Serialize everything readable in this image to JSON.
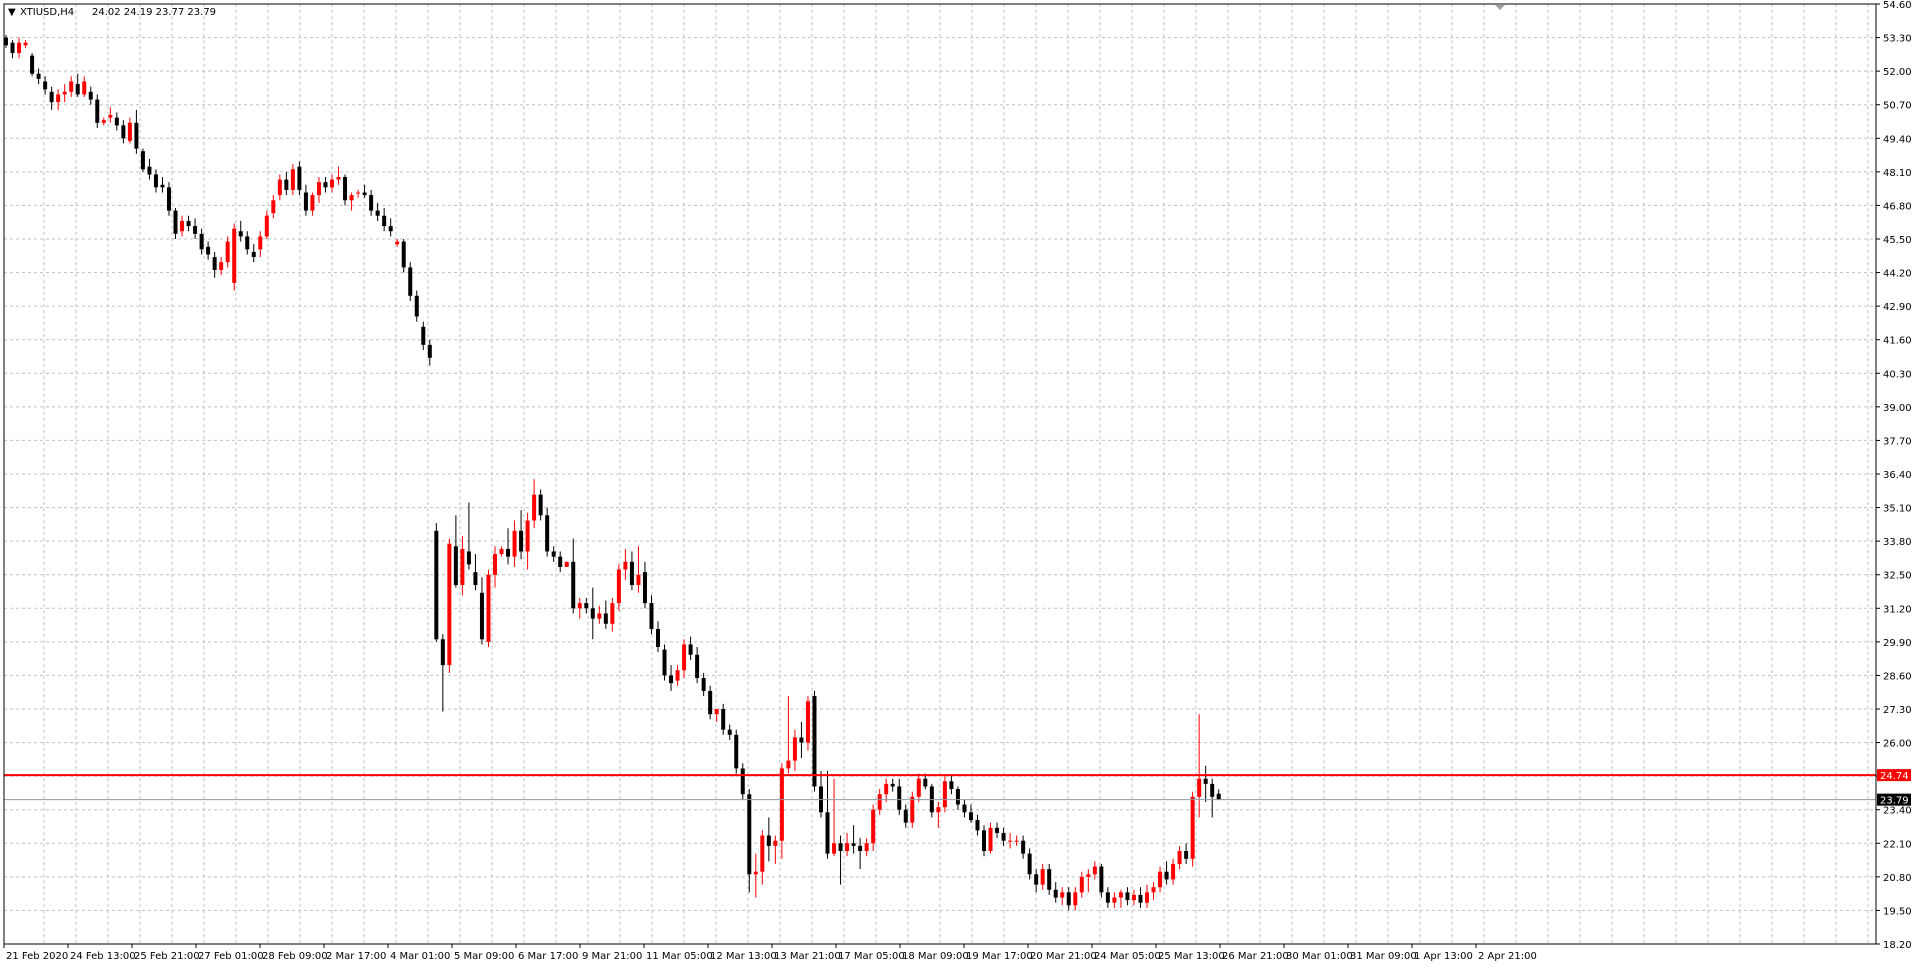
{
  "header": {
    "menu_glyph": "▼",
    "title": "XTIUSD,H4",
    "ohlc": "24.02 24.19 23.77 23.79"
  },
  "chart_data": {
    "type": "candlestick",
    "symbol": "XTIUSD",
    "timeframe": "H4",
    "ylim": [
      18.2,
      54.6
    ],
    "y_ticks": [
      "54.60",
      "53.30",
      "52.00",
      "50.70",
      "49.40",
      "48.10",
      "46.80",
      "45.50",
      "44.20",
      "42.90",
      "41.60",
      "40.30",
      "39.00",
      "37.70",
      "36.40",
      "35.10",
      "33.80",
      "32.50",
      "31.20",
      "29.90",
      "28.60",
      "27.30",
      "26.00",
      "24.70",
      "23.40",
      "22.10",
      "20.80",
      "19.50",
      "18.20"
    ],
    "x_ticks": [
      "21 Feb 2020",
      "24 Feb 13:00",
      "25 Feb 21:00",
      "27 Feb 01:00",
      "28 Feb 09:00",
      "2 Mar 17:00",
      "4 Mar 01:00",
      "5 Mar 09:00",
      "6 Mar 17:00",
      "9 Mar 21:00",
      "11 Mar 05:00",
      "12 Mar 13:00",
      "13 Mar 21:00",
      "17 Mar 05:00",
      "18 Mar 09:00",
      "19 Mar 17:00",
      "20 Mar 21:00",
      "24 Mar 05:00",
      "25 Mar 13:00",
      "26 Mar 21:00",
      "30 Mar 01:00",
      "31 Mar 09:00",
      "1 Apr 13:00",
      "2 Apr 21:00"
    ],
    "grid": true,
    "bull_color": "#ff0000",
    "bear_color": "#000000",
    "grid_color": "#c0c0c0",
    "level_line": {
      "price": 24.74,
      "label": "24.74",
      "color": "#ff0000"
    },
    "bid_line": {
      "price": 23.79,
      "label": "23.79",
      "color": "#000000"
    },
    "candles": [
      [
        53.3,
        53.4,
        52.9,
        53.0
      ],
      [
        53.1,
        53.2,
        52.5,
        52.7
      ],
      [
        52.7,
        53.3,
        52.5,
        53.1
      ],
      [
        53.0,
        53.2,
        52.9,
        53.1
      ],
      [
        52.6,
        52.7,
        51.8,
        51.9
      ],
      [
        51.9,
        52.1,
        51.5,
        51.7
      ],
      [
        51.6,
        51.8,
        51.1,
        51.3
      ],
      [
        51.2,
        51.4,
        50.5,
        50.8
      ],
      [
        50.8,
        51.3,
        50.5,
        51.1
      ],
      [
        51.1,
        51.5,
        50.8,
        51.2
      ],
      [
        51.2,
        51.8,
        51.0,
        51.6
      ],
      [
        51.5,
        51.9,
        51.0,
        51.1
      ],
      [
        51.1,
        51.8,
        51.0,
        51.6
      ],
      [
        51.2,
        51.4,
        50.7,
        50.9
      ],
      [
        50.9,
        51.1,
        49.8,
        50.0
      ],
      [
        50.0,
        50.2,
        49.9,
        50.1
      ],
      [
        50.2,
        50.6,
        50.0,
        50.3
      ],
      [
        50.2,
        50.4,
        49.7,
        49.9
      ],
      [
        49.9,
        50.1,
        49.2,
        49.4
      ],
      [
        49.3,
        50.2,
        49.2,
        50.0
      ],
      [
        50.0,
        50.5,
        48.8,
        49.0
      ],
      [
        48.9,
        49.0,
        48.1,
        48.2
      ],
      [
        48.3,
        48.6,
        47.8,
        48.0
      ],
      [
        48.0,
        48.2,
        47.3,
        47.5
      ],
      [
        47.6,
        47.9,
        47.3,
        47.5
      ],
      [
        47.5,
        47.7,
        46.4,
        46.6
      ],
      [
        46.6,
        46.7,
        45.5,
        45.7
      ],
      [
        45.8,
        46.4,
        45.6,
        46.2
      ],
      [
        46.2,
        46.4,
        45.8,
        46.0
      ],
      [
        46.0,
        46.3,
        45.5,
        45.7
      ],
      [
        45.7,
        45.9,
        44.9,
        45.1
      ],
      [
        45.2,
        45.4,
        44.7,
        44.9
      ],
      [
        44.8,
        45.0,
        44.0,
        44.3
      ],
      [
        44.3,
        44.8,
        44.1,
        44.6
      ],
      [
        44.6,
        45.6,
        44.4,
        45.4
      ],
      [
        43.8,
        46.1,
        43.5,
        45.9
      ],
      [
        45.8,
        46.2,
        45.4,
        45.6
      ],
      [
        45.6,
        45.8,
        44.9,
        45.1
      ],
      [
        45.0,
        45.3,
        44.6,
        44.8
      ],
      [
        45.1,
        45.8,
        44.8,
        45.6
      ],
      [
        45.6,
        46.6,
        45.5,
        46.4
      ],
      [
        46.5,
        47.2,
        46.3,
        47.0
      ],
      [
        47.2,
        48.0,
        47.0,
        47.8
      ],
      [
        47.8,
        48.1,
        47.2,
        47.4
      ],
      [
        47.4,
        48.4,
        47.2,
        48.2
      ],
      [
        48.3,
        48.5,
        47.2,
        47.4
      ],
      [
        47.3,
        47.6,
        46.4,
        46.6
      ],
      [
        46.6,
        47.3,
        46.4,
        47.2
      ],
      [
        47.2,
        47.9,
        46.9,
        47.7
      ],
      [
        47.7,
        47.9,
        47.3,
        47.5
      ],
      [
        47.5,
        48.0,
        47.3,
        47.8
      ],
      [
        47.8,
        48.3,
        47.6,
        47.9
      ],
      [
        47.9,
        48.0,
        46.8,
        47.0
      ],
      [
        47.0,
        47.3,
        46.6,
        47.2
      ],
      [
        47.3,
        47.4,
        47.1,
        47.3
      ],
      [
        47.3,
        47.6,
        47.1,
        47.2
      ],
      [
        47.2,
        47.4,
        46.4,
        46.6
      ],
      [
        46.6,
        46.9,
        46.2,
        46.4
      ],
      [
        46.4,
        46.7,
        45.8,
        46.0
      ],
      [
        46.0,
        46.3,
        45.6,
        45.8
      ],
      [
        45.3,
        45.5,
        45.2,
        45.4
      ],
      [
        45.4,
        45.5,
        44.2,
        44.4
      ],
      [
        44.4,
        44.6,
        43.1,
        43.3
      ],
      [
        43.3,
        43.5,
        42.3,
        42.5
      ],
      [
        42.1,
        42.3,
        41.2,
        41.4
      ],
      [
        41.4,
        41.6,
        40.6,
        40.9
      ],
      [
        34.2,
        34.5,
        29.9,
        30.0
      ],
      [
        30.0,
        30.2,
        27.2,
        29.0
      ],
      [
        29.0,
        33.9,
        28.7,
        33.7
      ],
      [
        33.6,
        34.8,
        32.0,
        32.1
      ],
      [
        32.1,
        34.0,
        31.7,
        33.5
      ],
      [
        33.4,
        35.3,
        32.7,
        32.9
      ],
      [
        32.6,
        33.3,
        31.9,
        32.1
      ],
      [
        31.8,
        32.4,
        29.8,
        30.0
      ],
      [
        29.9,
        32.7,
        29.7,
        32.5
      ],
      [
        32.5,
        33.6,
        32.0,
        33.3
      ],
      [
        33.3,
        33.6,
        33.2,
        33.5
      ],
      [
        33.5,
        34.3,
        32.9,
        33.2
      ],
      [
        33.2,
        34.6,
        32.8,
        34.2
      ],
      [
        34.2,
        35.0,
        33.1,
        33.4
      ],
      [
        33.4,
        34.9,
        32.7,
        34.6
      ],
      [
        34.6,
        36.2,
        34.3,
        35.6
      ],
      [
        35.6,
        35.8,
        34.6,
        34.8
      ],
      [
        34.8,
        35.1,
        33.2,
        33.4
      ],
      [
        33.4,
        33.6,
        33.0,
        33.2
      ],
      [
        33.2,
        33.4,
        32.6,
        32.8
      ],
      [
        32.8,
        33.0,
        32.9,
        33.0
      ],
      [
        33.0,
        33.9,
        31.0,
        31.2
      ],
      [
        31.2,
        31.6,
        30.8,
        31.4
      ],
      [
        31.4,
        31.6,
        31.0,
        31.2
      ],
      [
        31.2,
        32.0,
        30.0,
        30.8
      ],
      [
        30.8,
        31.3,
        30.6,
        31.0
      ],
      [
        31.0,
        31.5,
        30.4,
        30.6
      ],
      [
        30.6,
        31.6,
        30.3,
        31.4
      ],
      [
        31.4,
        32.9,
        31.1,
        32.7
      ],
      [
        32.7,
        33.5,
        32.3,
        33.0
      ],
      [
        33.0,
        33.4,
        31.9,
        32.1
      ],
      [
        32.1,
        33.6,
        31.8,
        32.5
      ],
      [
        32.6,
        33.0,
        31.2,
        31.4
      ],
      [
        31.4,
        31.7,
        30.2,
        30.4
      ],
      [
        30.4,
        30.7,
        29.5,
        29.7
      ],
      [
        29.6,
        29.8,
        28.4,
        28.6
      ],
      [
        28.6,
        29.0,
        28.0,
        28.3
      ],
      [
        28.4,
        29.0,
        28.2,
        28.8
      ],
      [
        28.8,
        30.0,
        28.5,
        29.8
      ],
      [
        29.8,
        30.1,
        29.2,
        29.4
      ],
      [
        29.4,
        29.7,
        28.3,
        28.5
      ],
      [
        28.5,
        28.7,
        27.8,
        28.0
      ],
      [
        28.0,
        28.2,
        26.9,
        27.1
      ],
      [
        27.1,
        27.3,
        26.8,
        27.3
      ],
      [
        27.3,
        27.5,
        26.3,
        26.5
      ],
      [
        26.5,
        26.7,
        26.1,
        26.3
      ],
      [
        26.3,
        26.5,
        24.8,
        25.0
      ],
      [
        25.0,
        25.2,
        23.8,
        24.0
      ],
      [
        24.0,
        24.2,
        20.2,
        20.9
      ],
      [
        20.9,
        21.7,
        20.0,
        21.0
      ],
      [
        21.0,
        22.6,
        20.5,
        22.4
      ],
      [
        22.4,
        23.1,
        21.4,
        22.0
      ],
      [
        22.0,
        22.4,
        21.3,
        22.2
      ],
      [
        22.2,
        25.2,
        21.5,
        25.0
      ],
      [
        25.0,
        27.8,
        24.8,
        25.3
      ],
      [
        25.3,
        26.5,
        24.9,
        26.2
      ],
      [
        26.2,
        26.8,
        25.4,
        26.0
      ],
      [
        26.0,
        27.8,
        25.7,
        27.6
      ],
      [
        27.8,
        28.0,
        24.1,
        24.3
      ],
      [
        24.3,
        24.9,
        23.1,
        23.3
      ],
      [
        23.3,
        24.9,
        21.5,
        21.7
      ],
      [
        21.7,
        24.6,
        21.6,
        22.1
      ],
      [
        22.1,
        22.4,
        20.5,
        21.8
      ],
      [
        21.8,
        22.5,
        21.6,
        22.1
      ],
      [
        22.1,
        22.8,
        21.7,
        22.0
      ],
      [
        22.0,
        22.3,
        21.1,
        21.8
      ],
      [
        21.8,
        22.3,
        21.6,
        22.1
      ],
      [
        22.1,
        23.6,
        21.8,
        23.4
      ],
      [
        23.4,
        24.2,
        23.2,
        24.0
      ],
      [
        24.0,
        24.6,
        23.7,
        24.4
      ],
      [
        24.4,
        24.6,
        24.1,
        24.3
      ],
      [
        24.3,
        24.6,
        23.2,
        23.4
      ],
      [
        23.4,
        23.6,
        22.7,
        22.9
      ],
      [
        22.9,
        24.1,
        22.7,
        23.9
      ],
      [
        23.9,
        24.8,
        23.7,
        24.6
      ],
      [
        24.6,
        24.8,
        24.2,
        24.3
      ],
      [
        24.3,
        24.4,
        23.1,
        23.3
      ],
      [
        23.3,
        23.7,
        22.7,
        23.5
      ],
      [
        23.5,
        24.7,
        23.3,
        24.5
      ],
      [
        24.5,
        24.7,
        24.0,
        24.2
      ],
      [
        24.2,
        24.3,
        23.4,
        23.6
      ],
      [
        23.6,
        23.8,
        23.1,
        23.3
      ],
      [
        23.3,
        23.6,
        22.9,
        23.0
      ],
      [
        23.0,
        23.2,
        22.4,
        22.6
      ],
      [
        22.6,
        22.8,
        21.6,
        21.8
      ],
      [
        21.8,
        22.9,
        21.7,
        22.7
      ],
      [
        22.7,
        22.9,
        22.3,
        22.5
      ],
      [
        22.5,
        22.7,
        22.0,
        22.2
      ],
      [
        22.2,
        22.5,
        21.9,
        22.2
      ],
      [
        22.2,
        22.4,
        22.0,
        22.2
      ],
      [
        22.2,
        22.4,
        21.5,
        21.7
      ],
      [
        21.7,
        21.9,
        20.7,
        20.9
      ],
      [
        20.9,
        21.1,
        20.2,
        20.5
      ],
      [
        20.5,
        21.3,
        20.3,
        21.1
      ],
      [
        21.1,
        21.3,
        20.1,
        20.3
      ],
      [
        20.3,
        20.6,
        19.8,
        20.0
      ],
      [
        20.0,
        20.4,
        19.7,
        20.2
      ],
      [
        20.2,
        20.4,
        19.5,
        19.7
      ],
      [
        19.7,
        20.4,
        19.5,
        20.2
      ],
      [
        20.2,
        21.0,
        20.0,
        20.8
      ],
      [
        20.8,
        21.1,
        20.2,
        20.9
      ],
      [
        20.9,
        21.4,
        20.7,
        21.2
      ],
      [
        21.2,
        21.3,
        20.0,
        20.2
      ],
      [
        20.2,
        20.4,
        19.6,
        19.8
      ],
      [
        19.8,
        20.2,
        19.6,
        20.0
      ],
      [
        20.0,
        20.3,
        19.6,
        20.2
      ],
      [
        20.2,
        20.4,
        19.7,
        19.9
      ],
      [
        19.9,
        20.3,
        19.7,
        20.1
      ],
      [
        20.1,
        20.4,
        19.6,
        19.8
      ],
      [
        19.8,
        20.5,
        19.6,
        20.2
      ],
      [
        20.2,
        20.6,
        19.9,
        20.4
      ],
      [
        20.4,
        21.2,
        20.2,
        21.0
      ],
      [
        21.0,
        21.4,
        20.5,
        20.7
      ],
      [
        20.7,
        21.5,
        20.5,
        21.3
      ],
      [
        21.3,
        22.0,
        21.1,
        21.8
      ],
      [
        21.8,
        22.1,
        21.3,
        21.5
      ],
      [
        21.5,
        24.1,
        21.2,
        23.9
      ],
      [
        23.9,
        27.1,
        23.1,
        24.6
      ],
      [
        24.6,
        25.1,
        23.7,
        24.4
      ],
      [
        24.4,
        24.6,
        23.1,
        23.9
      ],
      [
        24.02,
        24.19,
        23.77,
        23.79
      ]
    ]
  }
}
